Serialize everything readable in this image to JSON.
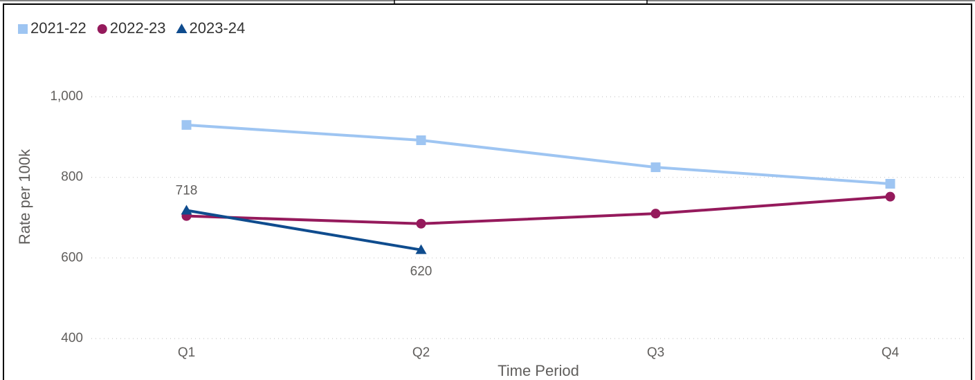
{
  "chart_data": {
    "type": "line",
    "x_label": "Time Period",
    "y_label": "Rate per 100k",
    "categories": [
      "Q1",
      "Q2",
      "Q3",
      "Q4"
    ],
    "series": [
      {
        "name": "2021-22",
        "color": "#9ec5f2",
        "marker": "square",
        "values": [
          930,
          892,
          825,
          784
        ]
      },
      {
        "name": "2022-23",
        "color": "#951a5c",
        "marker": "circle",
        "values": [
          704,
          685,
          710,
          752
        ]
      },
      {
        "name": "2023-24",
        "color": "#0f4c8e",
        "marker": "triangle",
        "values": [
          718,
          620,
          null,
          null
        ],
        "data_labels": true
      }
    ],
    "ylim": [
      400,
      1000
    ],
    "yticks": [
      400,
      600,
      800,
      {
        "value": 1000,
        "label": "1,000"
      }
    ],
    "grid": true,
    "legend": "top-left"
  }
}
